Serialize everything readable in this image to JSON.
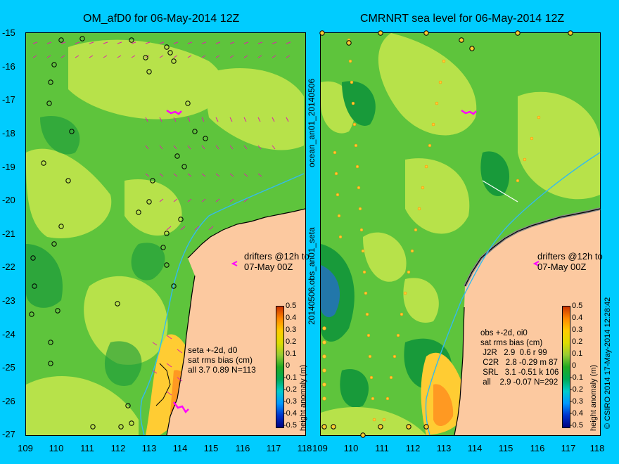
{
  "titles": {
    "left": "OM_afD0 for 06-May-2014 12Z",
    "right": "CMRNRT sea level  for 06-May-2014 12Z"
  },
  "y_axis_labels": [
    "-15",
    "-16",
    "-17",
    "-18",
    "-19",
    "-20",
    "-21",
    "-22",
    "-23",
    "-24",
    "-25",
    "-26",
    "-27"
  ],
  "x_axis_left": [
    "109",
    "110",
    "111",
    "112",
    "113",
    "114",
    "115",
    "116",
    "117",
    "118"
  ],
  "x_axis_right": [
    "109",
    "110",
    "111",
    "112",
    "113",
    "114",
    "115",
    "116",
    "117",
    "118"
  ],
  "side_labels": {
    "upper": "ocean_an01_20140506",
    "lower": "20140506.obs_an01_seta",
    "right": "© CSIRO 2014  17-May-2014 12:28:42"
  },
  "drifters_note": "drifters @12h to\n07-May 00Z",
  "left_stats": "seta +-2d, d0\nsat rms bias (cm)\nall 3.7 0.89 N=113",
  "right_stats": "obs +-2d, oi0\nsat rms bias (cm)\n J2R   2.9  0.6 r 99\n C2R   2.8 -0.29 m 87\n SRL   3.1 -0.51 k 106\n all    2.9 -0.07 N=292",
  "colorbar": {
    "label": "height anomaly (m)",
    "ticks": [
      "0.5",
      "0.4",
      "0.3",
      "0.2",
      "0.1",
      "0",
      "-0.1",
      "-0.2",
      "-0.3",
      "-0.4",
      "-0.5"
    ],
    "colors": [
      "#000080",
      "#0033cc",
      "#0099ff",
      "#00cccc",
      "#00aa55",
      "#22aa22",
      "#99cc33",
      "#dddd00",
      "#ffcc00",
      "#ff8800",
      "#cc3300"
    ]
  },
  "map_colors": {
    "land": "#fcc9a0",
    "ocean_base": "#5ec43c",
    "ocean_light": "#b7e24a",
    "ocean_dark": "#189a3a",
    "coast": "#000000",
    "shelf_contour": "#33bbee",
    "vectors": "#dd22aa"
  }
}
